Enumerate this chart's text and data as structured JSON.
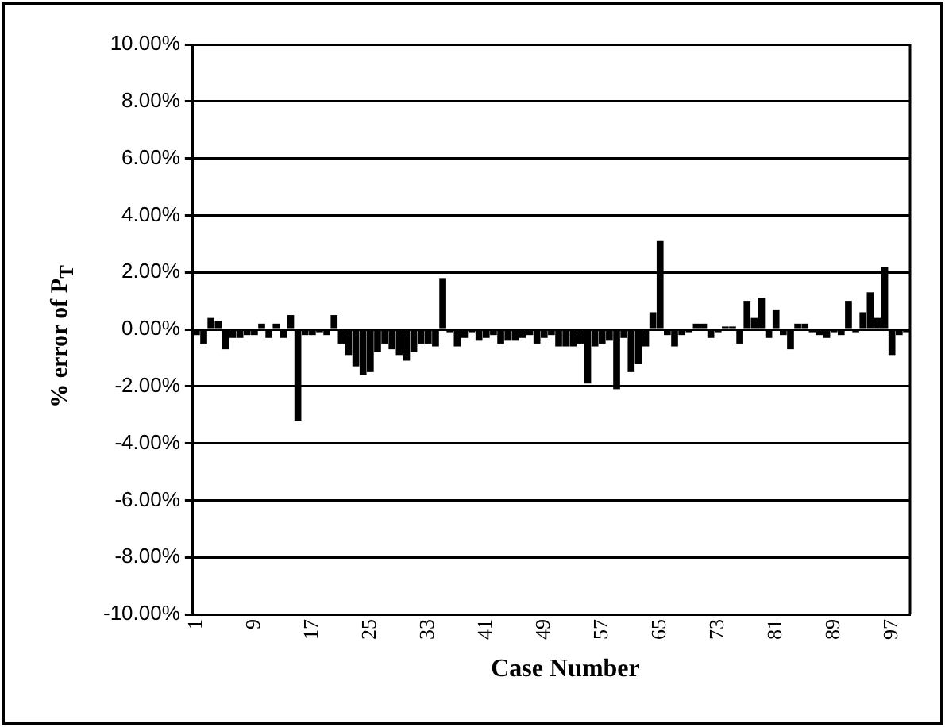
{
  "chart_data": {
    "type": "bar",
    "xlabel": "Case Number",
    "ylabel": "% error of P$_{T}$",
    "categories": [
      "1",
      null,
      null,
      null,
      null,
      null,
      null,
      null,
      "9",
      null,
      null,
      null,
      null,
      null,
      null,
      null,
      "17",
      null,
      null,
      null,
      null,
      null,
      null,
      null,
      "25",
      null,
      null,
      null,
      null,
      null,
      null,
      null,
      "33",
      null,
      null,
      null,
      null,
      null,
      null,
      null,
      "41",
      null,
      null,
      null,
      null,
      null,
      null,
      null,
      "49",
      null,
      null,
      null,
      null,
      null,
      null,
      null,
      "57",
      null,
      null,
      null,
      null,
      null,
      null,
      null,
      "65",
      null,
      null,
      null,
      null,
      null,
      null,
      null,
      "73",
      null,
      null,
      null,
      null,
      null,
      null,
      null,
      "81",
      null,
      null,
      null,
      null,
      null,
      null,
      null,
      "89",
      null,
      null,
      null,
      null,
      null,
      null,
      null,
      "97",
      null,
      null
    ],
    "values": [
      -0.2,
      -0.5,
      0.4,
      0.3,
      -0.7,
      -0.3,
      -0.3,
      -0.2,
      -0.2,
      0.2,
      -0.3,
      0.2,
      -0.3,
      0.5,
      -3.2,
      -0.2,
      -0.2,
      -0.1,
      -0.2,
      0.5,
      -0.5,
      -0.9,
      -1.3,
      -1.6,
      -1.5,
      -0.8,
      -0.5,
      -0.7,
      -0.9,
      -1.1,
      -0.8,
      -0.5,
      -0.5,
      -0.6,
      1.8,
      -0.1,
      -0.6,
      -0.3,
      -0.1,
      -0.4,
      -0.3,
      -0.2,
      -0.5,
      -0.4,
      -0.4,
      -0.3,
      -0.2,
      -0.5,
      -0.3,
      -0.2,
      -0.6,
      -0.6,
      -0.6,
      -0.5,
      -1.9,
      -0.6,
      -0.5,
      -0.4,
      -2.1,
      -0.3,
      -1.5,
      -1.2,
      -0.6,
      0.6,
      3.1,
      -0.2,
      -0.6,
      -0.2,
      -0.1,
      0.2,
      0.2,
      -0.3,
      -0.1,
      0.1,
      0.1,
      -0.5,
      1.0,
      0.4,
      1.1,
      -0.3,
      0.7,
      -0.2,
      -0.7,
      0.2,
      0.2,
      -0.1,
      -0.2,
      -0.3,
      -0.1,
      -0.2,
      1.0,
      -0.1,
      0.6,
      1.3,
      0.4,
      2.2,
      -0.9,
      -0.2,
      -0.1
    ],
    "color": "#000000",
    "ylim": [
      -10,
      10
    ],
    "yticks": [
      {
        "value": -10,
        "label": "-10.00%"
      },
      {
        "value": -8,
        "label": "-8.00%"
      },
      {
        "value": -6,
        "label": "-6.00%"
      },
      {
        "value": -4,
        "label": "-4.00%"
      },
      {
        "value": -2,
        "label": "-2.00%"
      },
      {
        "value": 0,
        "label": "0.00%"
      },
      {
        "value": 2,
        "label": "2.00%"
      },
      {
        "value": 4,
        "label": "4.00%"
      },
      {
        "value": 6,
        "label": "6.00%"
      },
      {
        "value": 8,
        "label": "8.00%"
      },
      {
        "value": 10,
        "label": "10.00%"
      }
    ],
    "grid": "y"
  }
}
